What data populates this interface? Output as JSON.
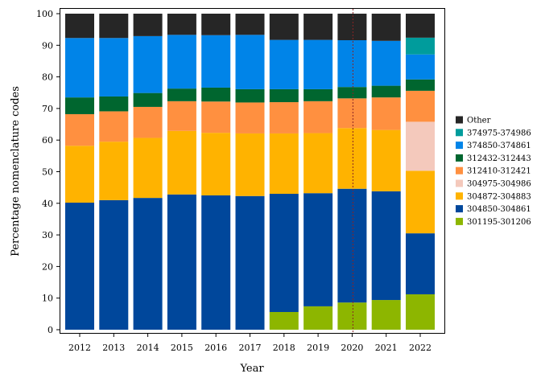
{
  "chart_data": {
    "type": "bar",
    "stacked": true,
    "title": "",
    "xlabel": "Year",
    "ylabel": "Percentage nomenclature codes",
    "ylim": [
      0,
      100
    ],
    "yticks": [
      0,
      10,
      20,
      30,
      40,
      50,
      60,
      70,
      80,
      90,
      100
    ],
    "categories": [
      "2012",
      "2013",
      "2014",
      "2015",
      "2016",
      "2017",
      "2018",
      "2019",
      "2020",
      "2021",
      "2022"
    ],
    "reference_line": {
      "x": "2020",
      "style": "dotted",
      "color": "#8b2323"
    },
    "series": [
      {
        "name": "301195-301206",
        "color": "#8db600",
        "values": [
          0,
          0,
          0,
          0,
          0,
          0,
          5.6,
          7.4,
          8.6,
          9.4,
          11.2
        ]
      },
      {
        "name": "304850-304861",
        "color": "#00479b",
        "values": [
          40.2,
          41.0,
          41.7,
          42.8,
          42.5,
          42.3,
          37.4,
          35.8,
          36.0,
          34.4,
          19.3
        ]
      },
      {
        "name": "304872-304883",
        "color": "#ffb300",
        "values": [
          18.0,
          18.5,
          19.0,
          20.1,
          19.8,
          19.8,
          19.1,
          19.0,
          19.2,
          19.4,
          19.8
        ]
      },
      {
        "name": "304975-304986",
        "color": "#f4c9bc",
        "values": [
          0,
          0,
          0,
          0,
          0,
          0,
          0,
          0,
          0,
          0,
          15.5
        ]
      },
      {
        "name": "312410-312421",
        "color": "#ff9040",
        "values": [
          10.0,
          9.6,
          9.8,
          9.4,
          9.9,
          9.8,
          9.9,
          10.1,
          9.4,
          10.3,
          9.8
        ]
      },
      {
        "name": "312432-312443",
        "color": "#00662f",
        "values": [
          5.3,
          4.7,
          4.4,
          4.0,
          4.4,
          4.2,
          4.1,
          3.8,
          3.6,
          3.7,
          3.6
        ]
      },
      {
        "name": "374850-374861",
        "color": "#0084e8",
        "values": [
          18.8,
          18.5,
          18.0,
          17.0,
          16.6,
          17.2,
          15.6,
          15.6,
          14.8,
          14.2,
          7.9
        ]
      },
      {
        "name": "374975-374986",
        "color": "#009c9c",
        "values": [
          0,
          0,
          0,
          0,
          0,
          0,
          0,
          0,
          0,
          0,
          5.3
        ]
      },
      {
        "name": "Other",
        "color": "#262626",
        "values": [
          7.7,
          7.7,
          7.1,
          6.7,
          6.8,
          6.7,
          8.3,
          8.3,
          8.4,
          8.6,
          7.6
        ]
      }
    ]
  }
}
